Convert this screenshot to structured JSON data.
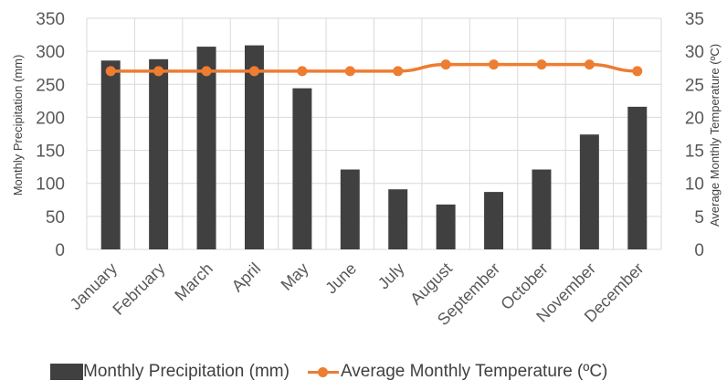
{
  "chart_data": {
    "type": "bar",
    "categories": [
      "January",
      "February",
      "March",
      "April",
      "May",
      "June",
      "July",
      "August",
      "September",
      "October",
      "November",
      "December"
    ],
    "series": [
      {
        "name": "Monthly Precipitation  (mm)",
        "type": "bar",
        "axis": "left",
        "color": "#404040",
        "values": [
          286,
          288,
          307,
          309,
          244,
          121,
          91,
          68,
          87,
          121,
          174,
          216
        ]
      },
      {
        "name": "Average Monthly  Temperature (ºC)",
        "type": "line",
        "axis": "right",
        "color": "#ED7D31",
        "values": [
          27,
          27,
          27,
          27,
          27,
          27,
          27,
          28,
          28,
          28,
          28,
          27
        ]
      }
    ],
    "ylabel": "Monthly Precipitation  (mm)",
    "y2label": "Average Monthly  Temperature (ºC)",
    "ylim": [
      0,
      350
    ],
    "y2lim": [
      0,
      35
    ],
    "yticks": [
      "0",
      "50",
      "100",
      "150",
      "200",
      "250",
      "300",
      "350"
    ],
    "y2ticks": [
      "0",
      "5",
      "10",
      "15",
      "20",
      "25",
      "30",
      "35"
    ],
    "grid": true,
    "legend_position": "bottom"
  }
}
